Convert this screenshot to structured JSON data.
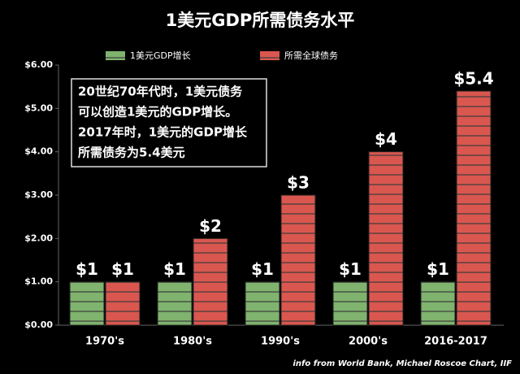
{
  "chart_data": {
    "type": "bar",
    "title": "1美元GDP所需债务水平",
    "categories": [
      "1970's",
      "1980's",
      "1990's",
      "2000's",
      "2016-2017"
    ],
    "series": [
      {
        "name": "1美元GDP增长",
        "color": "#7fb36e",
        "values": [
          1,
          1,
          1,
          1,
          1
        ],
        "value_labels": [
          "$1",
          "$1",
          "$1",
          "$1",
          "$1"
        ]
      },
      {
        "name": "所需全球债务",
        "color": "#d9574f",
        "values": [
          1,
          2,
          3,
          4,
          5.4
        ],
        "value_labels": [
          "$1",
          "$2",
          "$3",
          "$4",
          "$5.4"
        ]
      }
    ],
    "ylim": [
      0,
      6
    ],
    "yticks": [
      {
        "value": 0,
        "label": "$0.00"
      },
      {
        "value": 1,
        "label": "$1.00"
      },
      {
        "value": 2,
        "label": "$2.00"
      },
      {
        "value": 3,
        "label": "$3.00"
      },
      {
        "value": 4,
        "label": "$4.00"
      },
      {
        "value": 5,
        "label": "$5.00"
      },
      {
        "value": 6,
        "label": "$6.00"
      }
    ],
    "grid": false,
    "annotation": [
      "20世纪70年代时，1美元债务",
      "可以创造1美元的GDP增长。",
      "2017年时，1美元的GDP增长",
      "所需债务为5.4美元"
    ],
    "source": "info from World Bank, Michael Roscoe Chart, IIF"
  }
}
